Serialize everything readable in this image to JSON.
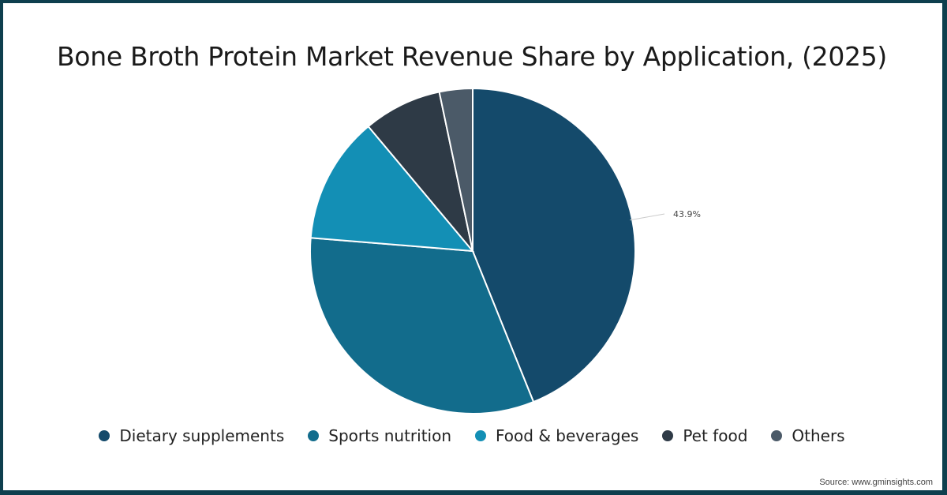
{
  "title": "Bone Broth Protein Market Revenue Share by Application, (2025)",
  "source": "Source: www.gminsights.com",
  "colors": {
    "frame": "#0e3f4e",
    "dietary_supplements": "#144a6b",
    "sports_nutrition": "#126c8c",
    "food_beverages": "#138fb5",
    "pet_food": "#2e3a46",
    "others": "#4b5a68"
  },
  "legend": [
    {
      "label": "Dietary supplements",
      "color": "#144a6b"
    },
    {
      "label": "Sports nutrition",
      "color": "#126c8c"
    },
    {
      "label": "Food & beverages",
      "color": "#138fb5"
    },
    {
      "label": "Pet food",
      "color": "#2e3a46"
    },
    {
      "label": "Others",
      "color": "#4b5a68"
    }
  ],
  "data_labels": {
    "dietary_supplements": "43.9%"
  },
  "chart_data": {
    "type": "pie",
    "title": "Bone Broth Protein Market Revenue Share by Application, (2025)",
    "categories": [
      "Dietary supplements",
      "Sports nutrition",
      "Food & beverages",
      "Pet food",
      "Others"
    ],
    "values": [
      43.9,
      32.4,
      12.6,
      7.8,
      3.3
    ],
    "unit": "%",
    "annotations": [
      {
        "category": "Dietary supplements",
        "text": "43.9%"
      }
    ],
    "legend_position": "bottom",
    "start_angle_deg": 0,
    "direction": "clockwise"
  }
}
